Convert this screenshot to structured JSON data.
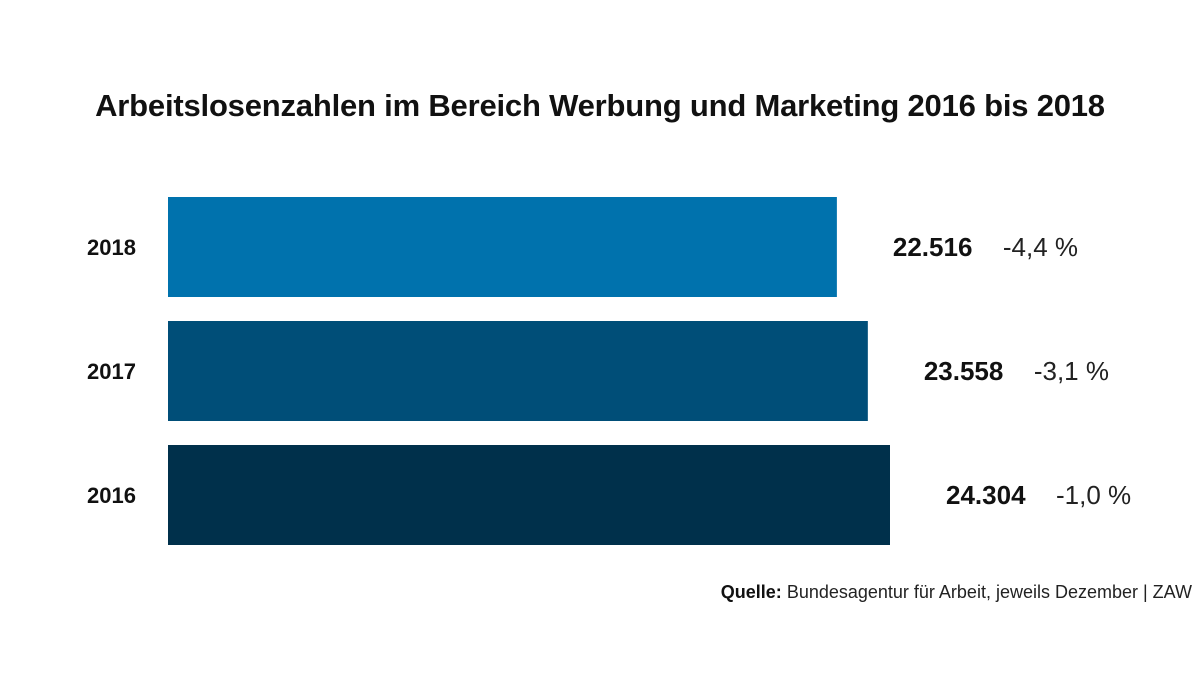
{
  "chart_data": {
    "type": "bar",
    "orientation": "horizontal",
    "title": "Arbeitslosenzahlen im Bereich Werbung und Marketing 2016 bis 2018",
    "categories": [
      "2018",
      "2017",
      "2016"
    ],
    "values": [
      22516,
      23558,
      24304
    ],
    "value_labels": [
      "22.516",
      "23.558",
      "24.304"
    ],
    "change_labels": [
      "-4,4 %",
      "-3,1 %",
      "-1,0 %"
    ],
    "colors": [
      "#0072ad",
      "#004e78",
      "#00304b"
    ],
    "xlim": [
      0,
      25000
    ],
    "grid": false,
    "legend": "none"
  },
  "source": {
    "label": "Quelle:",
    "text": "Bundesagentur für Arbeit, jeweils Dezember | ZAW"
  }
}
